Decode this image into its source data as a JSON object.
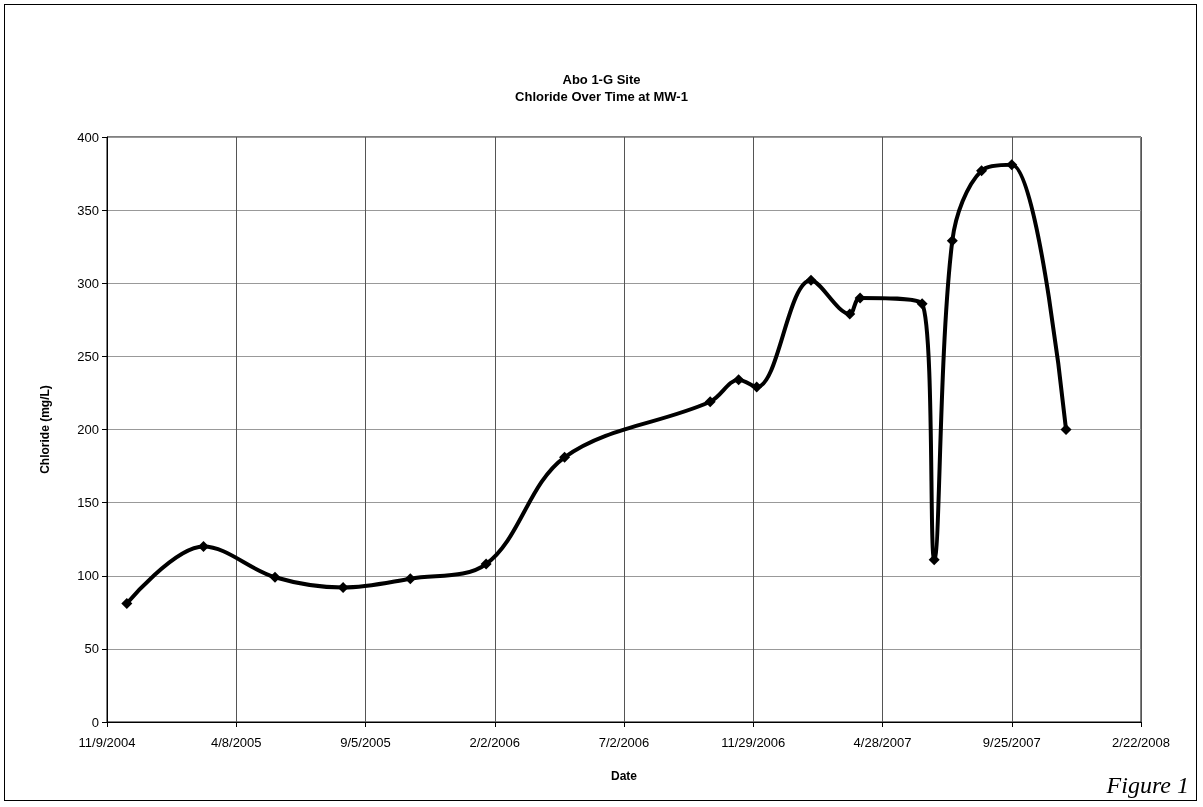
{
  "chart_data": {
    "type": "line",
    "title": "Abo 1-G Site",
    "subtitle": "Chloride Over Time at MW-1",
    "xlabel": "Date",
    "ylabel": "Chloride (mg/L)",
    "annotations": [
      "Figure 1"
    ],
    "x": [
      "2004-12-02",
      "2005-03-01",
      "2005-05-23",
      "2005-08-10",
      "2005-10-27",
      "2006-01-23",
      "2006-04-24",
      "2006-10-10",
      "2006-11-12",
      "2006-12-03",
      "2007-02-04",
      "2007-03-21",
      "2007-04-02",
      "2007-06-13",
      "2007-06-27",
      "2007-07-18",
      "2007-08-21",
      "2007-09-25",
      "2007-11-27"
    ],
    "series": [
      {
        "color": "#000000",
        "values": [
          81,
          120,
          99,
          92,
          98,
          108,
          181,
          219,
          234,
          229,
          302,
          279,
          290,
          286,
          111,
          329,
          377,
          381,
          200
        ]
      }
    ],
    "xlim": [
      "2004-11-09",
      "2008-02-22"
    ],
    "xticks": [
      {
        "value": "2004-11-09",
        "label": "11/9/2004"
      },
      {
        "value": "2005-04-08",
        "label": "4/8/2005"
      },
      {
        "value": "2005-09-05",
        "label": "9/5/2005"
      },
      {
        "value": "2006-02-02",
        "label": "2/2/2006"
      },
      {
        "value": "2006-07-02",
        "label": "7/2/2006"
      },
      {
        "value": "2006-11-29",
        "label": "11/29/2006"
      },
      {
        "value": "2007-04-28",
        "label": "4/28/2007"
      },
      {
        "value": "2007-09-25",
        "label": "9/25/2007"
      },
      {
        "value": "2008-02-22",
        "label": "2/22/2008"
      }
    ],
    "ylim": [
      0,
      400
    ],
    "yticks": [
      0,
      50,
      100,
      150,
      200,
      250,
      300,
      350,
      400
    ],
    "grid": true,
    "marker": "diamond",
    "line_style": "solid"
  }
}
